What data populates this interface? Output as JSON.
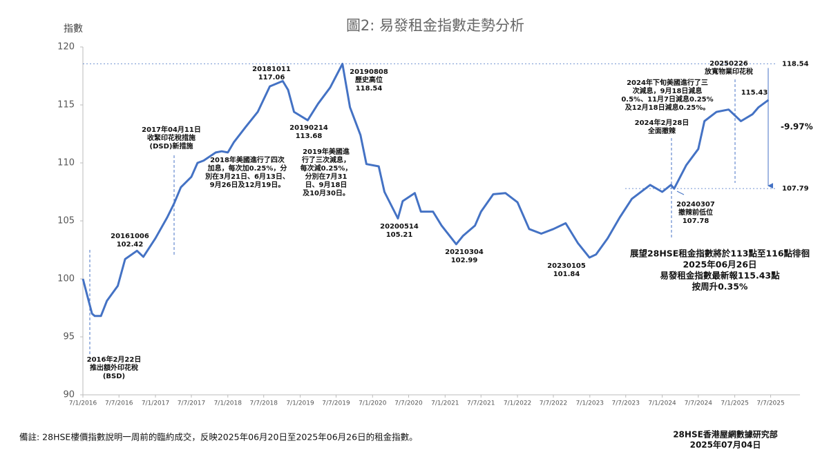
{
  "chart_data": {
    "type": "line",
    "title": "圖2: 易發租金指數走勢分析",
    "y_label": "指數",
    "color": "#4472c4",
    "x": [
      "2016-01-07",
      "2016-02-22",
      "2016-03-07",
      "2016-04-07",
      "2016-05-07",
      "2016-07-01",
      "2016-08-07",
      "2016-10-06",
      "2016-11-07",
      "2017-01-07",
      "2017-03-07",
      "2017-04-11",
      "2017-05-15",
      "2017-07-07",
      "2017-08-07",
      "2017-09-07",
      "2017-11-07",
      "2017-12-07",
      "2018-01-07",
      "2018-02-07",
      "2018-04-07",
      "2018-06-07",
      "2018-08-07",
      "2018-10-11",
      "2018-11-07",
      "2018-12-07",
      "2019-02-14",
      "2019-04-07",
      "2019-06-07",
      "2019-08-08",
      "2019-09-15",
      "2019-11-07",
      "2019-12-07",
      "2020-02-07",
      "2020-03-07",
      "2020-05-14",
      "2020-06-07",
      "2020-08-07",
      "2020-09-07",
      "2020-11-07",
      "2020-12-20",
      "2021-03-04",
      "2021-04-07",
      "2021-06-07",
      "2021-07-07",
      "2021-09-07",
      "2021-11-07",
      "2022-01-07",
      "2022-03-07",
      "2022-05-07",
      "2022-07-07",
      "2022-09-07",
      "2022-11-07",
      "2023-01-05",
      "2023-02-07",
      "2023-04-07",
      "2023-06-07",
      "2023-08-07",
      "2023-11-07",
      "2024-01-07",
      "2024-02-20",
      "2024-03-07",
      "2024-05-07",
      "2024-07-07",
      "2024-08-07",
      "2024-10-07",
      "2024-12-07",
      "2025-02-07",
      "2025-04-07",
      "2025-05-07",
      "2025-06-26"
    ],
    "values": [
      100,
      97.0,
      96.8,
      96.8,
      98.1,
      99.4,
      101.7,
      102.42,
      101.9,
      103.5,
      105.3,
      106.5,
      107.9,
      108.8,
      110.0,
      110.2,
      110.9,
      111.0,
      110.9,
      111.8,
      113.1,
      114.4,
      116.6,
      117.06,
      116.3,
      114.4,
      113.68,
      115.1,
      116.5,
      118.54,
      114.8,
      112.4,
      109.9,
      109.7,
      107.5,
      105.21,
      106.7,
      107.4,
      105.8,
      105.8,
      104.6,
      102.99,
      103.7,
      104.6,
      105.8,
      107.3,
      107.4,
      106.6,
      104.3,
      103.9,
      104.3,
      104.8,
      103.1,
      101.84,
      102.1,
      103.5,
      105.3,
      106.9,
      108.1,
      107.5,
      108.1,
      107.78,
      109.8,
      111.2,
      113.6,
      114.4,
      114.6,
      113.6,
      114.2,
      114.8,
      115.43
    ],
    "xlim": [
      "2016-01-07",
      "2025-11-25"
    ],
    "xticks": [
      {
        "value": "2016-01-07",
        "label": "7/1/2016"
      },
      {
        "value": "2016-07-07",
        "label": "7/7/2016"
      },
      {
        "value": "2017-01-07",
        "label": "7/1/2017"
      },
      {
        "value": "2017-07-07",
        "label": "7/7/2017"
      },
      {
        "value": "2018-01-07",
        "label": "7/1/2018"
      },
      {
        "value": "2018-07-07",
        "label": "7/7/2018"
      },
      {
        "value": "2019-01-07",
        "label": "7/1/2019"
      },
      {
        "value": "2019-07-07",
        "label": "7/7/2019"
      },
      {
        "value": "2020-01-07",
        "label": "7/1/2020"
      },
      {
        "value": "2020-07-07",
        "label": "7/7/2020"
      },
      {
        "value": "2021-01-07",
        "label": "7/1/2021"
      },
      {
        "value": "2021-07-07",
        "label": "7/7/2021"
      },
      {
        "value": "2022-01-07",
        "label": "7/1/2022"
      },
      {
        "value": "2022-07-07",
        "label": "7/7/2022"
      },
      {
        "value": "2023-01-07",
        "label": "7/1/2023"
      },
      {
        "value": "2023-07-07",
        "label": "7/7/2023"
      },
      {
        "value": "2024-01-07",
        "label": "7/1/2024"
      },
      {
        "value": "2024-07-07",
        "label": "7/7/2024"
      },
      {
        "value": "2025-01-07",
        "label": "7/1/2025"
      },
      {
        "value": "2025-07-07",
        "label": "7/7/2025"
      }
    ],
    "ylim": [
      90,
      120
    ],
    "yticks": [
      90,
      95,
      100,
      105,
      110,
      115,
      120
    ],
    "hlines": [
      118.54,
      107.79
    ],
    "change_label": "-9.97%",
    "annotations": [
      [
        "2016年2月22日",
        "推出額外印花稅",
        "(BSD)"
      ],
      [
        "20161006",
        "102.42"
      ],
      [
        "2017年04月11日",
        "收緊印花稅措施",
        "(DSD)新措施"
      ],
      [
        "2018年美國進行了四次",
        "加息，每次加0.25%，分",
        "別在3月21日、6月13日、",
        "9月26日及12月19日。"
      ],
      [
        "20181011",
        "117.06"
      ],
      [
        "20190214",
        "113.68"
      ],
      [
        "20190808",
        "歷史高位",
        "118.54"
      ],
      [
        "2019年美國進",
        "行了三次減息，",
        "每次減0.25%，",
        "分別在7月31",
        "日、9月18日",
        "及10月30日。"
      ],
      [
        "20200514",
        "105.21"
      ],
      [
        "20210304",
        "102.99"
      ],
      [
        "20230105",
        "101.84"
      ],
      [
        "20240307",
        "撤辣前低位",
        "107.78"
      ],
      [
        "2024年2月28日",
        "全面撤辣"
      ],
      [
        "2024年下旬美國進行了三",
        "次減息，9月18日減息",
        "0.5%、11月7日減息0.25%",
        "及12月18日減息0.25%。"
      ],
      [
        "20250226",
        "放寬物業印花稅"
      ],
      [
        "115.43"
      ]
    ],
    "outlook": [
      "展望28HSE租金指數將於113點至116點徘徊",
      "2025年06月26日",
      "易發租金指數最新報115.43點",
      "按周升0.35%"
    ],
    "footnote": "備註: 28HSE樓價指數說明一周前的臨約成交，反映2025年06月20日至2025年06月26日的租金指數。",
    "source": [
      "28HSE香港屋網數據研究部",
      "2025年07月04日"
    ]
  }
}
